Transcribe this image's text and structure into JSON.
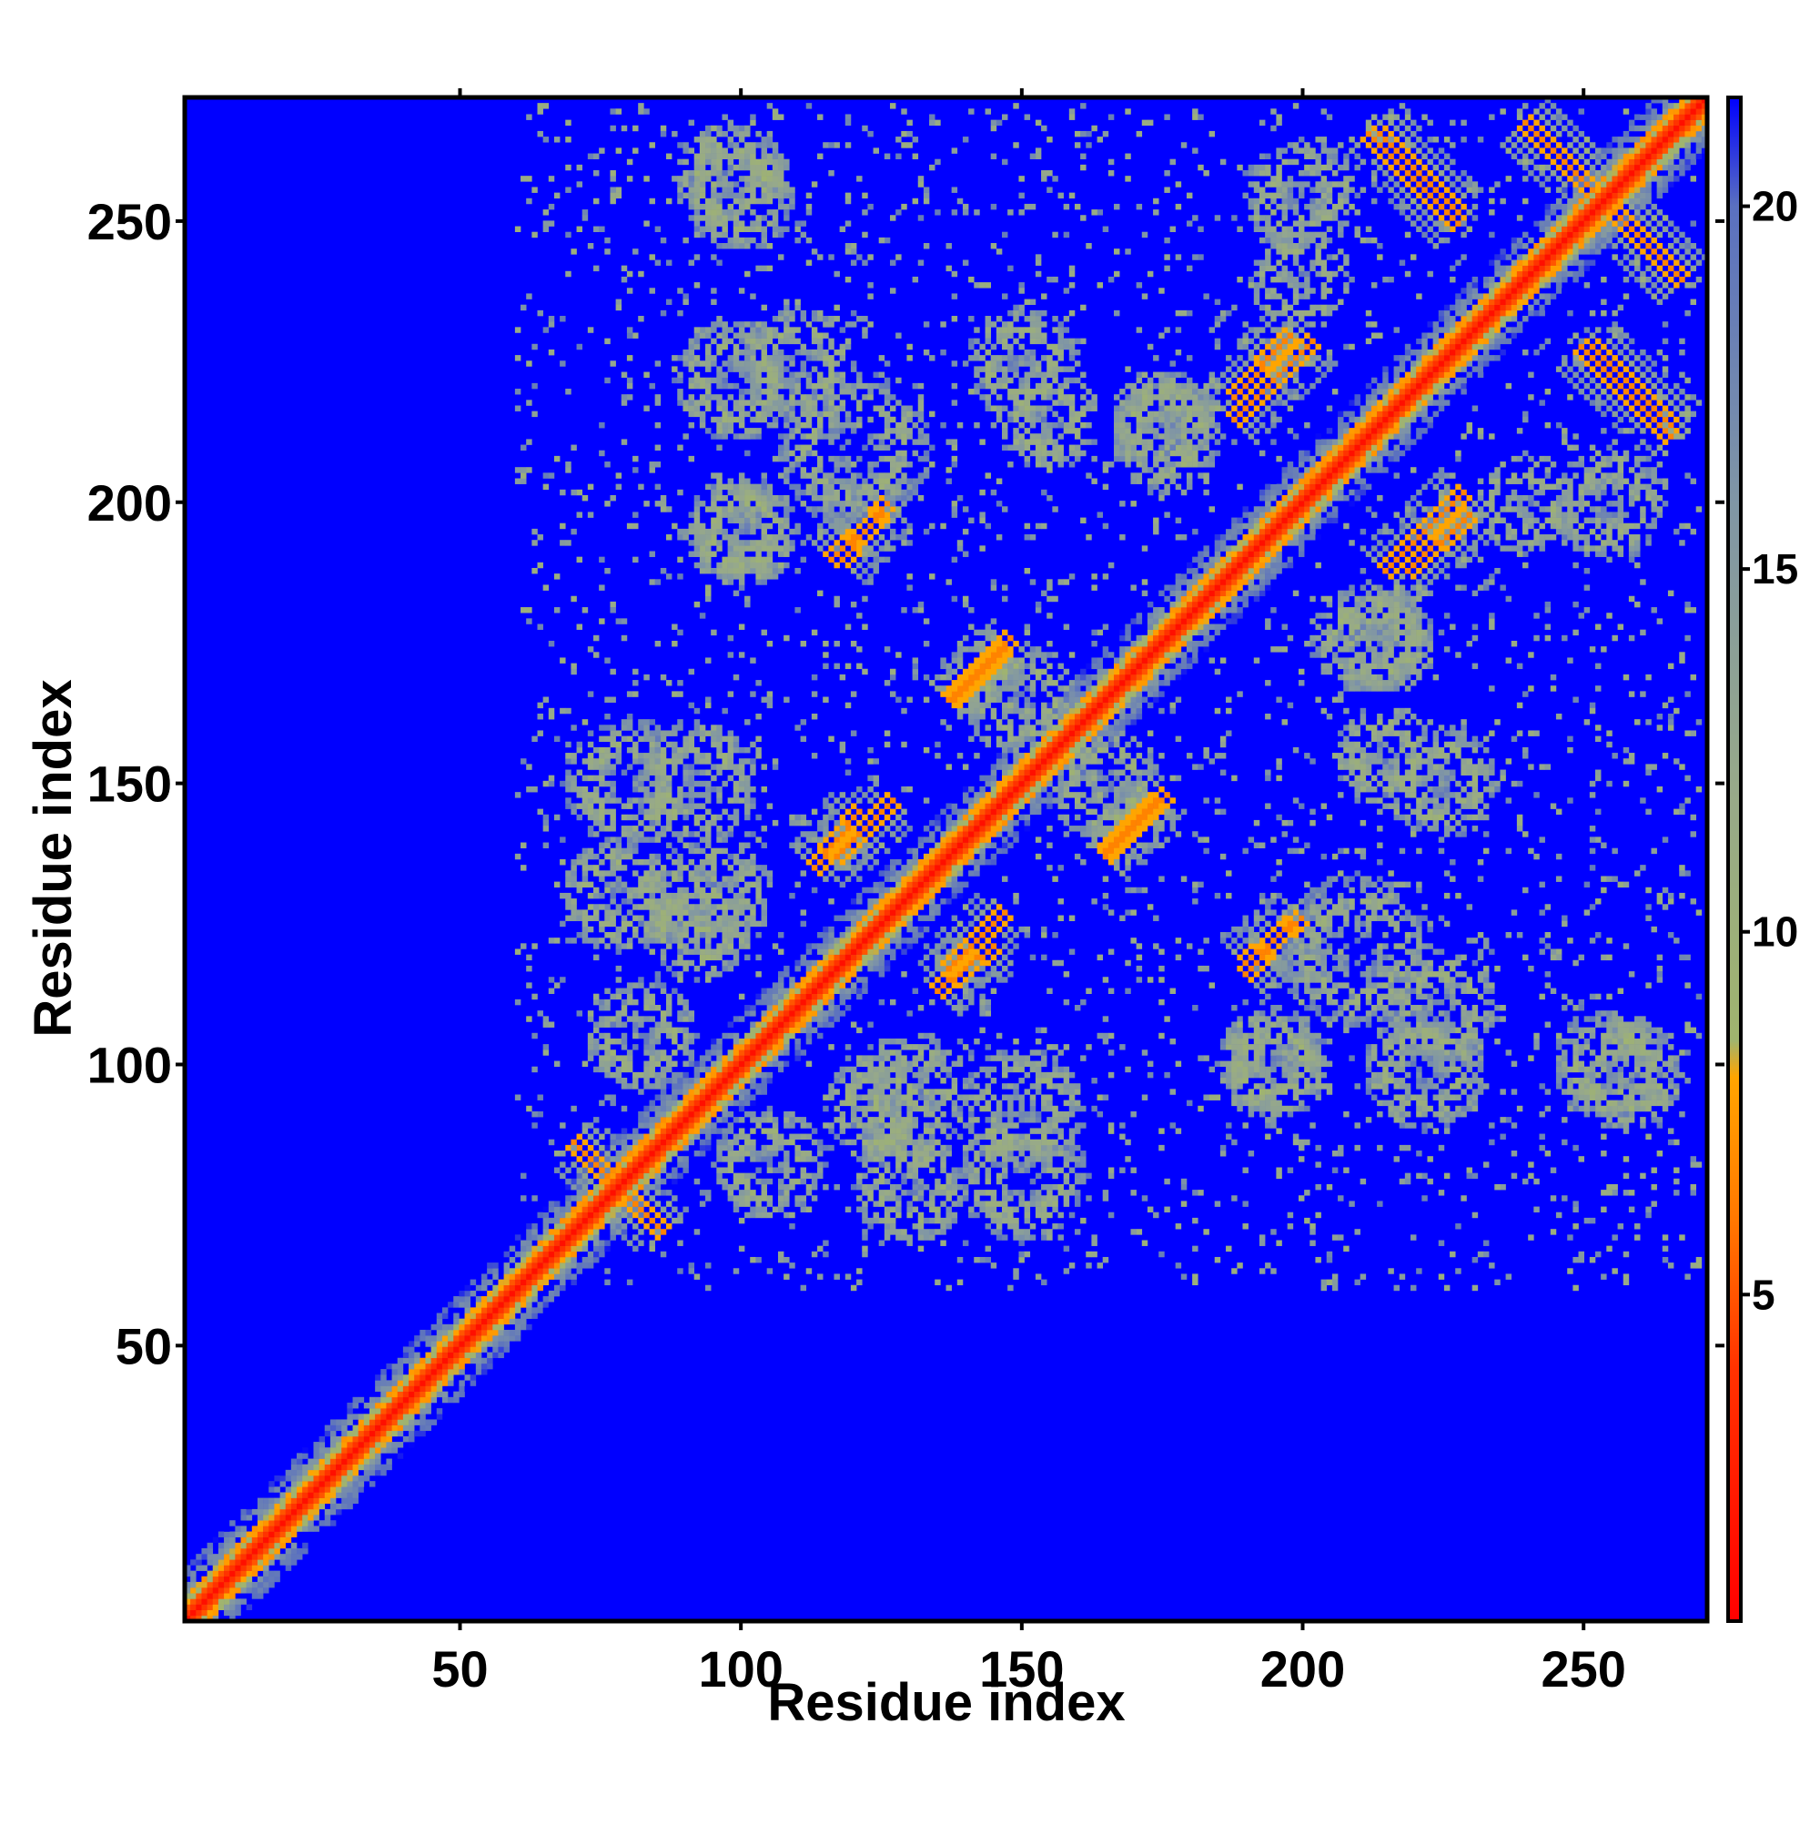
{
  "chart_data": {
    "type": "heatmap",
    "title": "",
    "xlabel": "Residue index",
    "ylabel": "Residue index",
    "xlim": [
      1,
      272
    ],
    "ylim": [
      1,
      272
    ],
    "x_ticks": [
      50,
      100,
      150,
      200,
      250
    ],
    "y_ticks": [
      50,
      100,
      150,
      200,
      250
    ],
    "x_tick_labels": [
      "50",
      "100",
      "150",
      "200",
      "250"
    ],
    "y_tick_labels": [
      "50",
      "100",
      "150",
      "200",
      "250"
    ],
    "colorbar": {
      "range": [
        0.5,
        21.5
      ],
      "ticks": [
        5,
        10,
        15,
        20
      ],
      "tick_labels": [
        "5",
        "10",
        "15",
        "20"
      ],
      "stops": [
        {
          "value": 0.5,
          "color": "#ff0000"
        },
        {
          "value": 4.0,
          "color": "#ff3300"
        },
        {
          "value": 6.0,
          "color": "#ff7700"
        },
        {
          "value": 8.0,
          "color": "#ffa500"
        },
        {
          "value": 8.5,
          "color": "#a0b46e"
        },
        {
          "value": 12.0,
          "color": "#97a98a"
        },
        {
          "value": 16.0,
          "color": "#7f95a6"
        },
        {
          "value": 20.0,
          "color": "#5a70c0"
        },
        {
          "value": 21.5,
          "color": "#0000ff"
        }
      ]
    },
    "background_value": 21.5,
    "diagonal": {
      "from": 1,
      "to": 272,
      "value": 3
    },
    "contact_features": [
      {
        "kind": "strand-pair",
        "x0": 70,
        "y0": 86,
        "x1": 86,
        "y1": 70
      },
      {
        "kind": "strand-pair",
        "x0": 240,
        "y0": 268,
        "x1": 268,
        "y1": 240
      },
      {
        "kind": "strand-pair",
        "x0": 212,
        "y0": 266,
        "x1": 228,
        "y1": 250
      },
      {
        "kind": "strand-pair",
        "x0": 252,
        "y0": 228,
        "x1": 266,
        "y1": 214
      },
      {
        "kind": "helix-pair",
        "x0": 188,
        "y0": 215,
        "x1": 202,
        "y1": 229
      },
      {
        "kind": "helix-pair",
        "x0": 219,
        "y0": 188,
        "x1": 230,
        "y1": 198
      },
      {
        "kind": "helix-pair",
        "x0": 118,
        "y0": 190,
        "x1": 126,
        "y1": 200
      },
      {
        "kind": "helix-pair",
        "x0": 137,
        "y0": 165,
        "x1": 148,
        "y1": 176
      },
      {
        "kind": "helix-pair",
        "x0": 113,
        "y0": 135,
        "x1": 121,
        "y1": 145
      },
      {
        "kind": "helix-pair",
        "x0": 137,
        "y0": 117,
        "x1": 147,
        "y1": 127
      },
      {
        "kind": "helix-pair",
        "x0": 165,
        "y0": 138,
        "x1": 174,
        "y1": 147
      },
      {
        "kind": "helix-pair",
        "x0": 190,
        "y0": 116,
        "x1": 198,
        "y1": 125
      },
      {
        "kind": "cluster",
        "x": 98,
        "y": 258,
        "r": 10
      },
      {
        "kind": "cluster",
        "x": 99,
        "y": 222,
        "r": 11
      },
      {
        "kind": "cluster",
        "x": 100,
        "y": 195,
        "r": 10
      },
      {
        "kind": "cluster",
        "x": 120,
        "y": 210,
        "r": 14
      },
      {
        "kind": "cluster",
        "x": 150,
        "y": 225,
        "r": 10
      },
      {
        "kind": "cluster",
        "x": 80,
        "y": 150,
        "r": 12
      },
      {
        "kind": "cluster",
        "x": 78,
        "y": 130,
        "r": 10
      },
      {
        "kind": "cluster",
        "x": 92,
        "y": 125,
        "r": 10
      },
      {
        "kind": "cluster",
        "x": 130,
        "y": 95,
        "r": 11
      },
      {
        "kind": "cluster",
        "x": 150,
        "y": 92,
        "r": 11
      },
      {
        "kind": "cluster",
        "x": 105,
        "y": 82,
        "r": 10
      },
      {
        "kind": "cluster",
        "x": 165,
        "y": 150,
        "r": 10
      },
      {
        "kind": "cluster",
        "x": 195,
        "y": 100,
        "r": 9
      },
      {
        "kind": "cluster",
        "x": 225,
        "y": 110,
        "r": 10
      },
      {
        "kind": "cluster",
        "x": 255,
        "y": 100,
        "r": 10
      },
      {
        "kind": "cluster",
        "x": 215,
        "y": 155,
        "r": 9
      },
      {
        "kind": "cluster",
        "x": 215,
        "y": 175,
        "r": 9
      },
      {
        "kind": "cluster",
        "x": 176,
        "y": 212,
        "r": 10
      },
      {
        "kind": "cluster",
        "x": 240,
        "y": 200,
        "r": 9
      },
      {
        "kind": "cluster",
        "x": 200,
        "y": 255,
        "r": 10
      }
    ]
  }
}
